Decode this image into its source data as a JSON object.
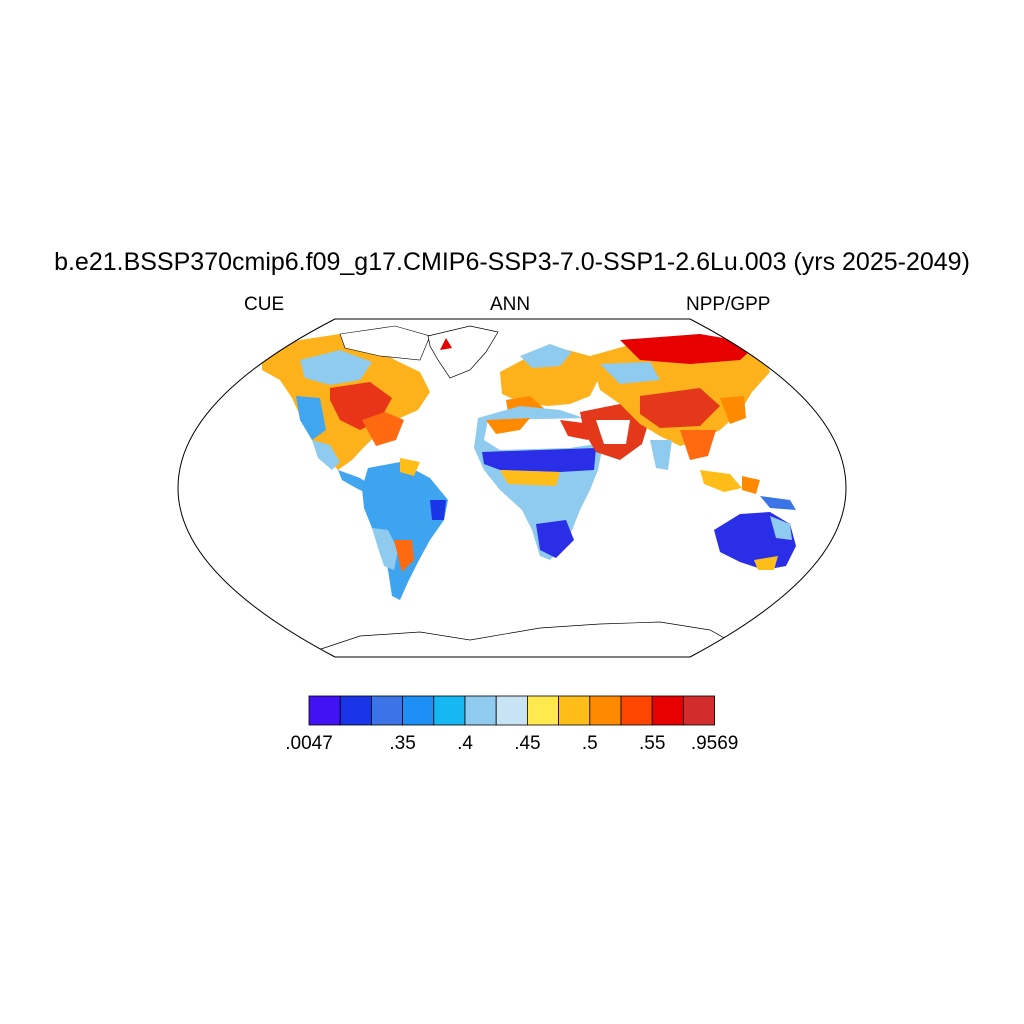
{
  "header": {
    "title": "b.e21.BSSP370cmip6.f09_g17.CMIP6-SSP3-7.0-SSP1-2.6Lu.003 (yrs 2025-2049)",
    "left_label": "CUE",
    "center_label": "ANN",
    "right_label": "NPP/GPP"
  },
  "map": {
    "projection": "Robinson",
    "land_fill_regions": [
      {
        "region": "Greenland / high Arctic",
        "color": "#ffffff"
      },
      {
        "region": "Sahara & Arabian deserts (no data)",
        "color": "#ffffff"
      },
      {
        "region": "Antarctica",
        "color": "#ffffff"
      }
    ]
  },
  "colorbar": {
    "colors": [
      "#4212f5",
      "#1a34e8",
      "#3a74e6",
      "#1e90f5",
      "#16b8f4",
      "#8fcbee",
      "#c8e4f4",
      "#ffe94f",
      "#ffbd1a",
      "#ff8a00",
      "#ff4600",
      "#e60000",
      "#d22c2c"
    ],
    "tick_labels": [
      ".0047",
      ".35",
      ".4",
      ".45",
      ".5",
      ".55",
      ".9569"
    ],
    "tick_after_box": [
      0,
      3,
      5,
      7,
      9,
      11,
      13
    ]
  }
}
